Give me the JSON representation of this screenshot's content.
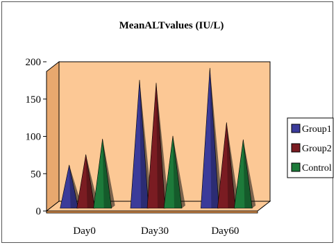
{
  "chart_data": {
    "type": "bar",
    "title": "MeanALTvalues (IU/L)",
    "categories": [
      "Day0",
      "Day30",
      "Day60"
    ],
    "series": [
      {
        "name": "Group1",
        "values": [
          58,
          172,
          188
        ],
        "color": "#3b3b9a"
      },
      {
        "name": "Group2",
        "values": [
          72,
          168,
          115
        ],
        "color": "#7a1c22"
      },
      {
        "name": "Control",
        "values": [
          93,
          97,
          92
        ],
        "color": "#1d7a3a"
      }
    ],
    "ylim": [
      0,
      200
    ],
    "yticks": [
      "0",
      "50",
      "100",
      "150",
      "200"
    ],
    "wall_color": "#fcc895",
    "legend_position": "right",
    "bar_shape": "cone"
  }
}
